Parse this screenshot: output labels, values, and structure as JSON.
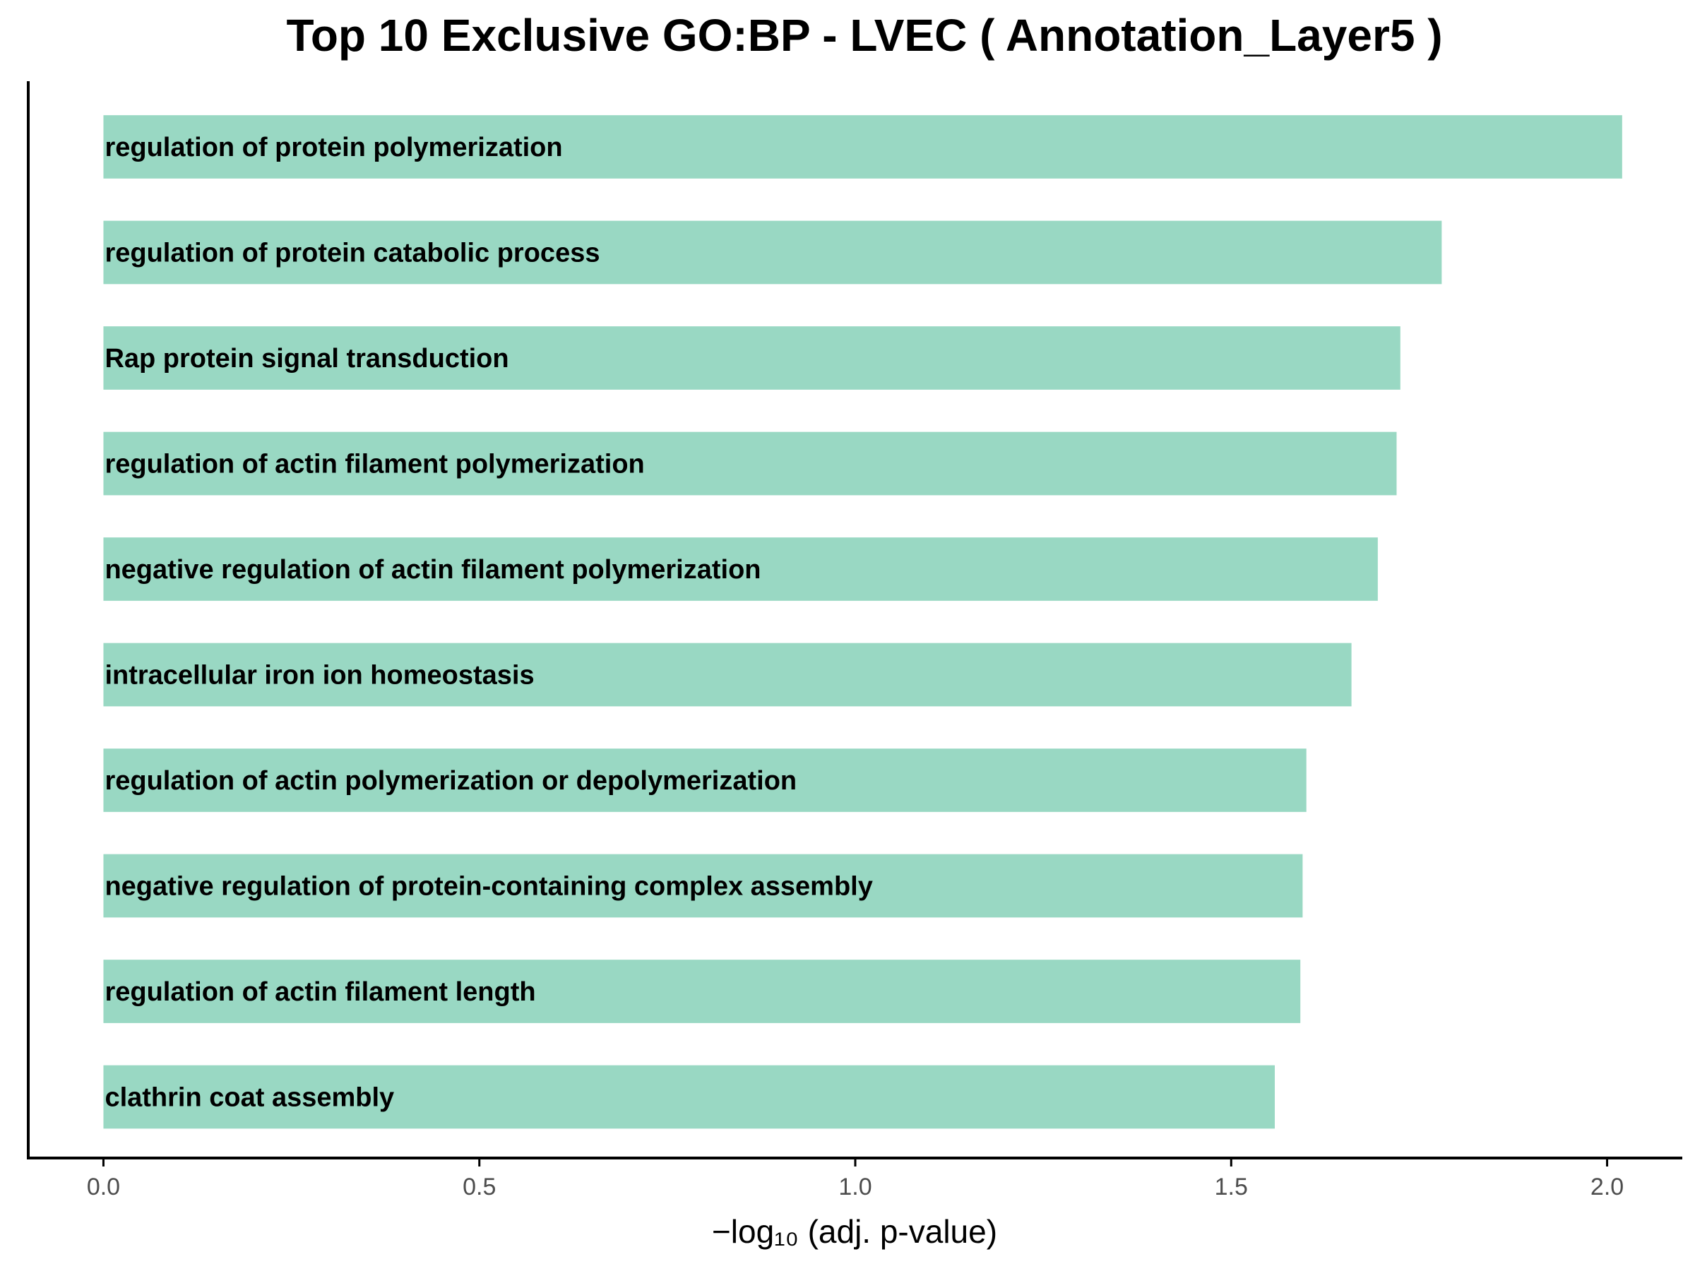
{
  "chart_data": {
    "type": "bar",
    "orientation": "horizontal",
    "title": "Top 10 Exclusive GO:BP - LVEC ( Annotation_Layer5 )",
    "xlabel": "−log₁₀ (adj. p-value)",
    "ylabel": "",
    "xlim": [
      -0.1,
      2.1
    ],
    "xticks": [
      "0.0",
      "0.5",
      "1.0",
      "1.5",
      "2.0"
    ],
    "grid": false,
    "bar_color": "#99d8c3",
    "categories": [
      "regulation of protein polymerization",
      "regulation of protein catabolic process",
      "Rap protein signal transduction",
      "regulation of actin filament polymerization",
      "negative regulation of actin filament polymerization",
      "intracellular iron ion homeostasis",
      "regulation of actin polymerization or depolymerization",
      "negative regulation of protein-containing complex assembly",
      "regulation of actin filament length",
      "clathrin coat assembly"
    ],
    "values": [
      2.02,
      1.78,
      1.725,
      1.72,
      1.695,
      1.66,
      1.6,
      1.595,
      1.592,
      1.558
    ]
  }
}
